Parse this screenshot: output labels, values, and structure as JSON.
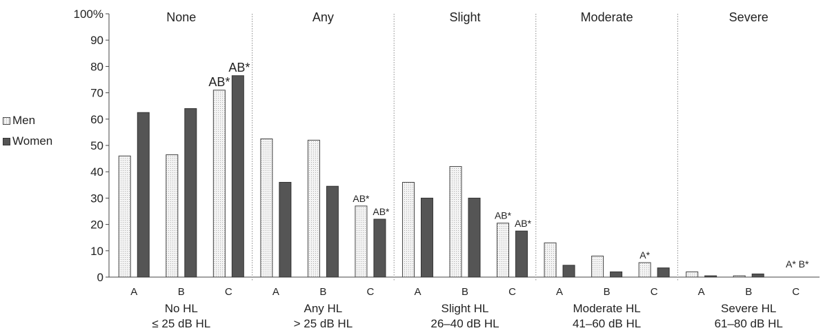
{
  "chart_data": {
    "type": "bar",
    "y_ticks": [
      "100%",
      "90",
      "80",
      "70",
      "60",
      "50",
      "40",
      "30",
      "20",
      "10",
      "0"
    ],
    "ylim": [
      0,
      100
    ],
    "grid": false,
    "legend_position": "left",
    "series_names": [
      "Men",
      "Women"
    ],
    "colors": {
      "men": "#f4f4f4",
      "women": "#555555"
    },
    "groups": [
      {
        "panel_title": "None",
        "xlabel_line1": "No HL",
        "xlabel_line2": "≤ 25 dB HL",
        "bars": [
          {
            "category": "A",
            "men": 46,
            "women": 62.5,
            "annotation": "",
            "annotation_women": ""
          },
          {
            "category": "B",
            "men": 46.5,
            "women": 64,
            "annotation": "",
            "annotation_women": ""
          },
          {
            "category": "C",
            "men": 71,
            "women": 76.5,
            "annotation": "AB*",
            "annotation_women": "AB*"
          }
        ]
      },
      {
        "panel_title": "Any",
        "xlabel_line1": "Any HL",
        "xlabel_line2": "> 25 dB HL",
        "bars": [
          {
            "category": "A",
            "men": 52.5,
            "women": 36,
            "annotation": "",
            "annotation_women": ""
          },
          {
            "category": "B",
            "men": 52,
            "women": 34.5,
            "annotation": "",
            "annotation_women": ""
          },
          {
            "category": "C",
            "men": 27,
            "women": 22,
            "annotation": "AB*",
            "annotation_women": "AB*"
          }
        ]
      },
      {
        "panel_title": "Slight",
        "xlabel_line1": "Slight HL",
        "xlabel_line2": "26–40 dB HL",
        "bars": [
          {
            "category": "A",
            "men": 36,
            "women": 30,
            "annotation": "",
            "annotation_women": ""
          },
          {
            "category": "B",
            "men": 42,
            "women": 30,
            "annotation": "",
            "annotation_women": ""
          },
          {
            "category": "C",
            "men": 20.5,
            "women": 17.5,
            "annotation": "AB*",
            "annotation_women": "AB*"
          }
        ]
      },
      {
        "panel_title": "Moderate",
        "xlabel_line1": "Moderate HL",
        "xlabel_line2": "41–60 dB HL",
        "bars": [
          {
            "category": "A",
            "men": 13,
            "women": 4.5,
            "annotation": "",
            "annotation_women": ""
          },
          {
            "category": "B",
            "men": 8,
            "women": 2,
            "annotation": "",
            "annotation_women": ""
          },
          {
            "category": "C",
            "men": 5.5,
            "women": 3.5,
            "annotation": "A*",
            "annotation_women": ""
          }
        ]
      },
      {
        "panel_title": "Severe",
        "xlabel_line1": "Severe HL",
        "xlabel_line2": "61–80 dB HL",
        "bars": [
          {
            "category": "A",
            "men": 2,
            "women": 0.5,
            "annotation": "",
            "annotation_women": ""
          },
          {
            "category": "B",
            "men": 0.5,
            "women": 1.2,
            "annotation": "",
            "annotation_women": ""
          },
          {
            "category": "C",
            "men": 0,
            "women": 0,
            "annotation": "A* B*",
            "annotation_women": ""
          }
        ]
      }
    ]
  }
}
